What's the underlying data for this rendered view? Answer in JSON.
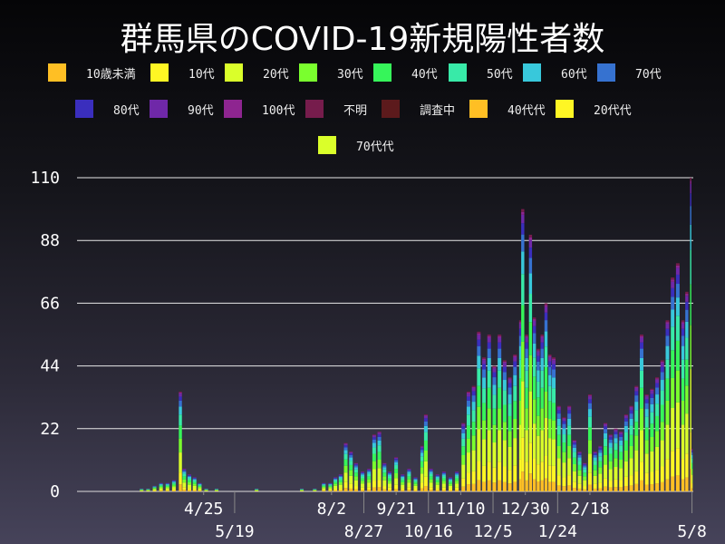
{
  "chart_data": {
    "type": "bar",
    "stacked": true,
    "title": "群馬県のCOVID-19新規陽性者数",
    "xlabel": "",
    "ylabel": "",
    "ylim": [
      0,
      110
    ],
    "xlim": [
      "2020-01-18",
      "2021-05-09"
    ],
    "grid": true,
    "legend_position": "top",
    "yticks": [
      0,
      22,
      44,
      66,
      88,
      110
    ],
    "xtick_labels": [
      "4/25",
      "5/19",
      "8/2",
      "8/27",
      "9/21",
      "10/16",
      "11/10",
      "12/5",
      "12/30",
      "1/24",
      "2/18",
      "5/8"
    ],
    "xtick_dates": [
      "2020-04-25",
      "2020-05-19",
      "2020-08-02",
      "2020-08-27",
      "2020-09-21",
      "2020-10-16",
      "2020-11-10",
      "2020-12-05",
      "2020-12-30",
      "2021-01-24",
      "2021-02-18",
      "2021-05-08"
    ],
    "legend": [
      {
        "name": "10歳未満",
        "color": "#ffbf24"
      },
      {
        "name": "10代",
        "color": "#fff624"
      },
      {
        "name": "20代",
        "color": "#daff2a"
      },
      {
        "name": "30代",
        "color": "#7aff2e"
      },
      {
        "name": "40代",
        "color": "#36f55a"
      },
      {
        "name": "50代",
        "color": "#38eaa8"
      },
      {
        "name": "60代",
        "color": "#38c8db"
      },
      {
        "name": "70代",
        "color": "#3672d0"
      },
      {
        "name": "80代",
        "color": "#3a2ebd"
      },
      {
        "name": "90代",
        "color": "#6f28a8"
      },
      {
        "name": "100代",
        "color": "#8e2590"
      },
      {
        "name": "不明",
        "color": "#761c4c"
      },
      {
        "name": "調査中",
        "color": "#5c1a1c"
      },
      {
        "name": "40代代",
        "color": "#ffbf24"
      },
      {
        "name": "20代代",
        "color": "#fff624"
      },
      {
        "name": "70代代",
        "color": "#daff2a"
      }
    ],
    "dates": [
      "2020-03-08",
      "2020-03-13",
      "2020-03-18",
      "2020-03-23",
      "2020-03-28",
      "2020-04-02",
      "2020-04-07",
      "2020-04-10",
      "2020-04-14",
      "2020-04-18",
      "2020-04-22",
      "2020-04-27",
      "2020-05-05",
      "2020-06-05",
      "2020-07-10",
      "2020-07-20",
      "2020-07-27",
      "2020-08-01",
      "2020-08-05",
      "2020-08-09",
      "2020-08-13",
      "2020-08-17",
      "2020-08-21",
      "2020-08-26",
      "2020-08-31",
      "2020-09-04",
      "2020-09-08",
      "2020-09-12",
      "2020-09-16",
      "2020-09-21",
      "2020-09-26",
      "2020-10-01",
      "2020-10-06",
      "2020-10-11",
      "2020-10-14",
      "2020-10-18",
      "2020-10-23",
      "2020-10-28",
      "2020-11-02",
      "2020-11-07",
      "2020-11-12",
      "2020-11-16",
      "2020-11-20",
      "2020-11-24",
      "2020-11-28",
      "2020-12-02",
      "2020-12-06",
      "2020-12-10",
      "2020-12-14",
      "2020-12-18",
      "2020-12-22",
      "2020-12-26",
      "2020-12-28",
      "2020-12-31",
      "2021-01-03",
      "2021-01-06",
      "2021-01-09",
      "2021-01-12",
      "2021-01-15",
      "2021-01-18",
      "2021-01-21",
      "2021-01-25",
      "2021-01-29",
      "2021-02-02",
      "2021-02-06",
      "2021-02-10",
      "2021-02-14",
      "2021-02-18",
      "2021-02-22",
      "2021-02-26",
      "2021-03-02",
      "2021-03-06",
      "2021-03-10",
      "2021-03-14",
      "2021-03-18",
      "2021-03-22",
      "2021-03-26",
      "2021-03-30",
      "2021-04-03",
      "2021-04-07",
      "2021-04-11",
      "2021-04-15",
      "2021-04-19",
      "2021-04-23",
      "2021-04-27",
      "2021-05-01",
      "2021-05-04",
      "2021-05-07",
      "2021-05-08"
    ],
    "totals": [
      1,
      1,
      2,
      3,
      3,
      4,
      35,
      8,
      6,
      5,
      3,
      1,
      1,
      1,
      1,
      1,
      3,
      3,
      5,
      6,
      17,
      14,
      10,
      7,
      8,
      20,
      21,
      10,
      7,
      12,
      6,
      8,
      5,
      16,
      27,
      8,
      6,
      7,
      5,
      7,
      24,
      35,
      37,
      56,
      47,
      55,
      44,
      55,
      46,
      40,
      48,
      60,
      99,
      55,
      90,
      61,
      50,
      55,
      66,
      48,
      47,
      30,
      26,
      30,
      18,
      14,
      10,
      34,
      14,
      16,
      24,
      20,
      22,
      21,
      27,
      30,
      37,
      55,
      34,
      36,
      40,
      46,
      60,
      75,
      80,
      60,
      70,
      110,
      15
    ]
  }
}
